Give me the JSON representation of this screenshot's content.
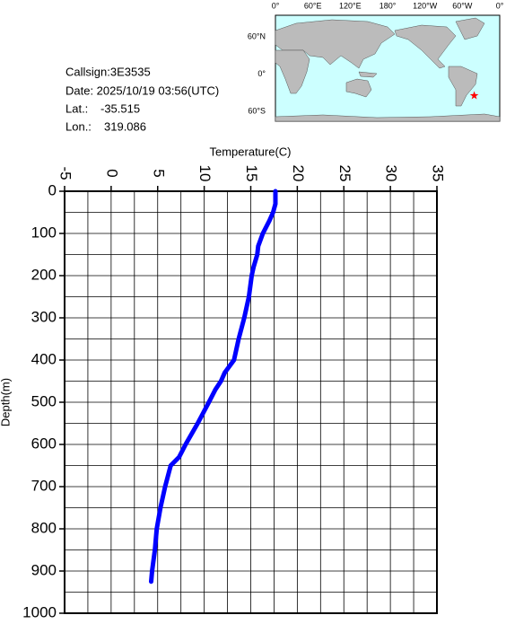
{
  "info": {
    "callsign": "Callsign:3E3535",
    "date": "Date:  2025/10/19 03:56(UTC)",
    "lat_label": "Lat.:",
    "lat": -35.515,
    "lon_label": "Lon.:",
    "lon": 319.086,
    "map_xlabels": [
      "0°",
      "60°E",
      "120°E",
      "180°",
      "120°W",
      "60°W",
      "0°"
    ],
    "map_ylabels": [
      "60°N",
      "0°",
      "60°S"
    ]
  },
  "chart_data": {
    "type": "line",
    "xlabel": "Temperature(C)",
    "ylabel": "Depth(m)",
    "x": [
      17.65,
      17.65,
      17.4,
      17.0,
      16.3,
      15.8,
      15.7,
      15.3,
      15.1,
      14.8,
      14.3,
      13.7,
      13.2,
      12.2,
      11.8,
      11.2,
      10.5,
      9.3,
      8.0,
      7.3,
      6.4,
      5.8,
      5.3,
      4.9,
      4.7,
      4.4,
      4.3
    ],
    "values": [
      0,
      30,
      50,
      70,
      100,
      130,
      150,
      180,
      200,
      250,
      300,
      350,
      400,
      430,
      450,
      470,
      500,
      550,
      600,
      630,
      650,
      700,
      750,
      800,
      850,
      900,
      925
    ],
    "color": "#0000ff",
    "xlim": [
      -5,
      35
    ],
    "xticks": [
      -5,
      0,
      5,
      10,
      15,
      20,
      25,
      30,
      35
    ],
    "ylim": [
      0,
      1000
    ],
    "yticks": [
      0,
      100,
      200,
      300,
      400,
      500,
      600,
      700,
      800,
      900,
      1000
    ],
    "xgridlines": [
      -2.5,
      0,
      2.5,
      5,
      7.5,
      10,
      12.5,
      15,
      17.5,
      20,
      22.5,
      25,
      27.5,
      30,
      32.5
    ],
    "ygridlines": [
      50,
      100,
      150,
      200,
      250,
      300,
      350,
      400,
      450,
      500,
      550,
      600,
      650,
      700,
      750,
      800,
      850,
      900,
      950
    ],
    "grid": true,
    "y_inverted": true
  }
}
